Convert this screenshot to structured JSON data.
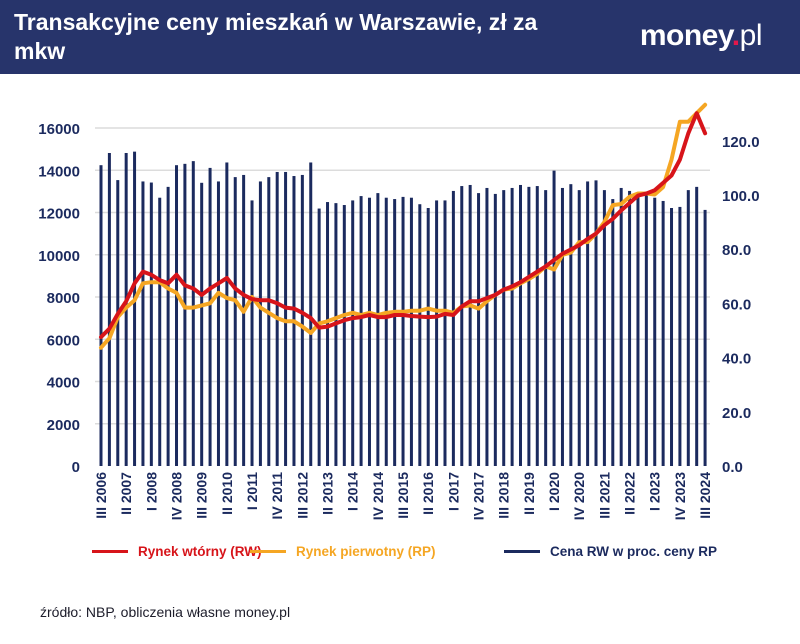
{
  "header": {
    "title": "Transakcyjne ceny mieszkań w Warszawie, zł za mkw",
    "logo": "money.pl"
  },
  "source": "źródło: NBP, obliczenia własne money.pl",
  "colors": {
    "rw": "#d7141a",
    "rp": "#f5a623",
    "bars": "#1b2a5e",
    "header": "#27346b"
  },
  "chart_data": {
    "type": "bar+line",
    "title": "Transakcyjne ceny mieszkań w Warszawie, zł za mkw",
    "left_axis": {
      "range": [
        0,
        16000
      ],
      "ticks": [
        "0",
        "2000",
        "4000",
        "6000",
        "8000",
        "10000",
        "12000",
        "14000",
        "16000"
      ]
    },
    "right_axis": {
      "range": [
        0,
        125
      ],
      "ticks": [
        "0.0",
        "20.0",
        "40.0",
        "60.0",
        "80.0",
        "100.0",
        "120.0"
      ]
    },
    "x_tick_labels": [
      "III 2006",
      "II 2007",
      "I 2008",
      "IV 2008",
      "III 2009",
      "II 2010",
      "I 2011",
      "IV 2011",
      "III 2012",
      "II 2013",
      "I 2014",
      "IV 2014",
      "III 2015",
      "II 2016",
      "I 2017",
      "IV 2017",
      "III 2018",
      "II 2019",
      "I 2020",
      "IV 2020",
      "III 2021",
      "II 2022",
      "I 2023",
      "IV 2023",
      "III 2024"
    ],
    "grid": true,
    "legend_position": "bottom",
    "series": [
      {
        "name": "Rynek wtórny (RW)",
        "type": "line",
        "axis": "left",
        "values": [
          6100,
          6500,
          7200,
          7800,
          8650,
          9200,
          9050,
          8800,
          8650,
          9050,
          8550,
          8400,
          8100,
          8400,
          8650,
          8900,
          8400,
          8100,
          7900,
          7850,
          7850,
          7700,
          7500,
          7450,
          7250,
          7000,
          6550,
          6600,
          6750,
          6900,
          7000,
          7050,
          7150,
          7050,
          7050,
          7150,
          7150,
          7100,
          7070,
          7050,
          7070,
          7200,
          7150,
          7550,
          7800,
          7800,
          7950,
          8100,
          8350,
          8500,
          8700,
          8950,
          9200,
          9450,
          9750,
          10050,
          10250,
          10450,
          10750,
          11000,
          11400,
          11700,
          12100,
          12450,
          12800,
          12900,
          13050,
          13400,
          13750,
          14500,
          15750,
          16700,
          15750
        ]
      },
      {
        "name": "Rynek pierwotny (RP)",
        "type": "line",
        "axis": "left",
        "values": [
          5600,
          6050,
          7050,
          7500,
          7850,
          8650,
          8700,
          8700,
          8400,
          8200,
          7500,
          7500,
          7600,
          7700,
          8200,
          7950,
          7850,
          7300,
          8000,
          7500,
          7250,
          7000,
          6850,
          6850,
          6600,
          6300,
          6750,
          6850,
          7000,
          7150,
          7250,
          7150,
          7250,
          7150,
          7250,
          7300,
          7300,
          7350,
          7350,
          7450,
          7350,
          7350,
          7250,
          7550,
          7600,
          7450,
          7800,
          8100,
          8350,
          8400,
          8650,
          8850,
          9100,
          9450,
          9300,
          10000,
          10100,
          10600,
          10600,
          11000,
          11550,
          12350,
          12400,
          12750,
          12900,
          12900,
          12850,
          13200,
          14500,
          16300,
          16300,
          16700,
          17100
        ]
      },
      {
        "name": "Cena RW w proc. ceny RP",
        "type": "bar",
        "axis": "right",
        "values": [
          111,
          115.5,
          105.5,
          115.5,
          116,
          105,
          104.6,
          99,
          103,
          111,
          111.5,
          112.5,
          104.5,
          110,
          105,
          112,
          106.6,
          107.4,
          98,
          105,
          106.6,
          108.5,
          108.5,
          107,
          107.4,
          112,
          95,
          97.4,
          97,
          96.3,
          98,
          99.6,
          99,
          100.7,
          99,
          98.5,
          99.3,
          99,
          96.6,
          95.2,
          98,
          98,
          101.5,
          103.3,
          103.7,
          100.7,
          102.6,
          100.4,
          101.8,
          102.6,
          103.7,
          103,
          103.3,
          101.8,
          109,
          102.6,
          104,
          101.8,
          105,
          105.4,
          101.8,
          98.5,
          102.6,
          101.5,
          99.6,
          100,
          99,
          97.8,
          95.2,
          95.6,
          101.8,
          103,
          94.5
        ]
      }
    ]
  }
}
